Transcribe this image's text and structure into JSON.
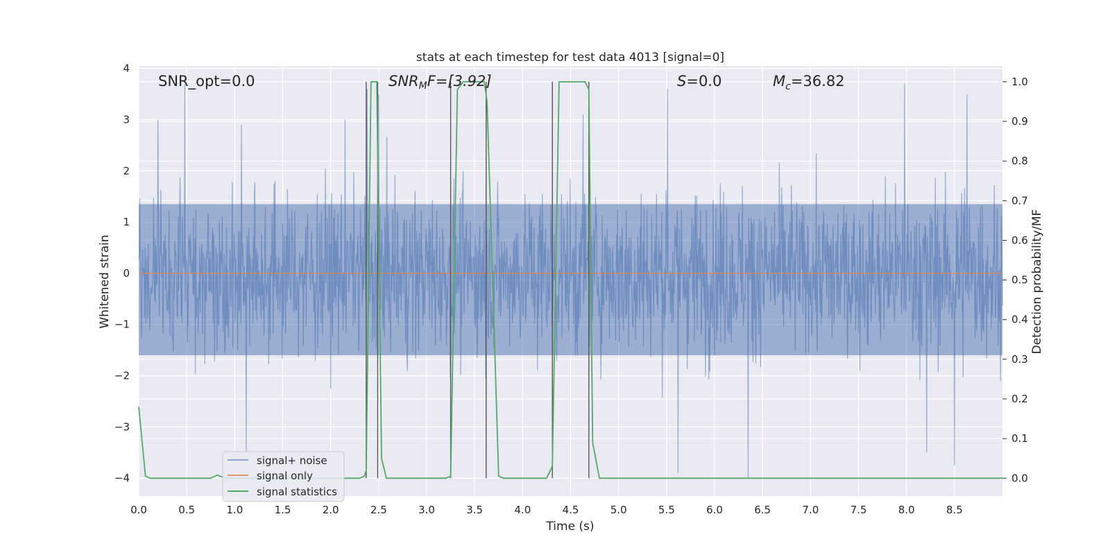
{
  "chart_data": {
    "type": "line",
    "title": "stats at each timestep for test data 4013 [signal=0]",
    "xlabel": "Time (s)",
    "ylabel_left": "Whitened strain",
    "ylabel_right": "Detection probability/MF",
    "xlim": [
      0.0,
      9.0
    ],
    "ylim_left": [
      -4.35,
      4.05
    ],
    "ylim_right": [
      -0.045,
      1.04
    ],
    "xticks": [
      "0.0",
      "0.5",
      "1.0",
      "1.5",
      "2.0",
      "2.5",
      "3.0",
      "3.5",
      "4.0",
      "4.5",
      "5.0",
      "5.5",
      "6.0",
      "6.5",
      "7.0",
      "7.5",
      "8.0",
      "8.5"
    ],
    "yticks_left": [
      "−4",
      "−3",
      "−2",
      "−1",
      "0",
      "1",
      "2",
      "3",
      "4"
    ],
    "yticks_right": [
      "0.0",
      "0.1",
      "0.2",
      "0.3",
      "0.4",
      "0.5",
      "0.6",
      "0.7",
      "0.8",
      "0.9",
      "1.0"
    ],
    "grid": true,
    "legend_position": "lower-left",
    "annotations": {
      "snr_opt": "SNR_opt=0.0",
      "snr_mf_prefix": "SNR",
      "snr_mf_sub": "M",
      "snr_mf_suffix": "F=[3.92]",
      "s_var": "S",
      "s_val": "=0.0",
      "mc_var": "M",
      "mc_sub": "c",
      "mc_val": "=36.82"
    },
    "vlines_x": [
      2.37,
      2.49,
      3.25,
      3.62,
      4.31,
      4.69
    ],
    "series": [
      {
        "name": "signal+ noise",
        "axis": "left",
        "color": "#4c72b0",
        "note": "dense whitened noise, mostly between about -2.7 and +2.8 with spikes to about +3.7 and -4.0",
        "spikes": [
          {
            "x": 0.48,
            "y": 3.7
          },
          {
            "x": 0.2,
            "y": 3.0
          },
          {
            "x": 1.12,
            "y": -3.5
          },
          {
            "x": 2.38,
            "y": 3.6
          },
          {
            "x": 2.5,
            "y": 3.5
          },
          {
            "x": 5.51,
            "y": 3.6
          },
          {
            "x": 5.62,
            "y": -3.9
          },
          {
            "x": 6.35,
            "y": -4.0
          },
          {
            "x": 7.98,
            "y": 3.7
          },
          {
            "x": 8.21,
            "y": -3.5
          },
          {
            "x": 8.5,
            "y": -3.75
          },
          {
            "x": 8.63,
            "y": 3.5
          },
          {
            "x": 1.07,
            "y": 2.9
          },
          {
            "x": 2.15,
            "y": 3.0
          },
          {
            "x": 4.63,
            "y": 3.1
          }
        ]
      },
      {
        "name": "signal only",
        "axis": "left",
        "color": "#dd8452",
        "x": [
          0.0,
          9.0
        ],
        "y": [
          0.0,
          0.0
        ]
      },
      {
        "name": "signal statistics",
        "axis": "right",
        "color": "#55a868",
        "x": [
          0.0,
          0.07,
          0.12,
          0.3,
          0.5,
          0.75,
          0.82,
          0.9,
          1.0,
          1.5,
          2.0,
          2.3,
          2.35,
          2.37,
          2.42,
          2.45,
          2.48,
          2.53,
          2.58,
          2.65,
          3.0,
          3.2,
          3.25,
          3.32,
          3.38,
          3.5,
          3.6,
          3.63,
          3.75,
          3.8,
          4.0,
          4.25,
          4.31,
          4.38,
          4.5,
          4.65,
          4.69,
          4.73,
          4.8,
          5.0,
          6.0,
          7.0,
          8.0,
          9.0
        ],
        "y": [
          0.18,
          0.005,
          0.0,
          0.0,
          0.0,
          0.0,
          0.008,
          0.0,
          0.0,
          0.0,
          0.0,
          0.0,
          0.005,
          0.02,
          1.0,
          1.0,
          1.0,
          0.05,
          0.0,
          0.0,
          0.0,
          0.0,
          0.005,
          0.98,
          1.0,
          1.0,
          1.0,
          0.95,
          0.005,
          0.0,
          0.0,
          0.0,
          0.03,
          1.0,
          1.0,
          1.0,
          0.98,
          0.09,
          0.0,
          0.0,
          0.0,
          0.0,
          0.0,
          0.0
        ]
      }
    ]
  }
}
